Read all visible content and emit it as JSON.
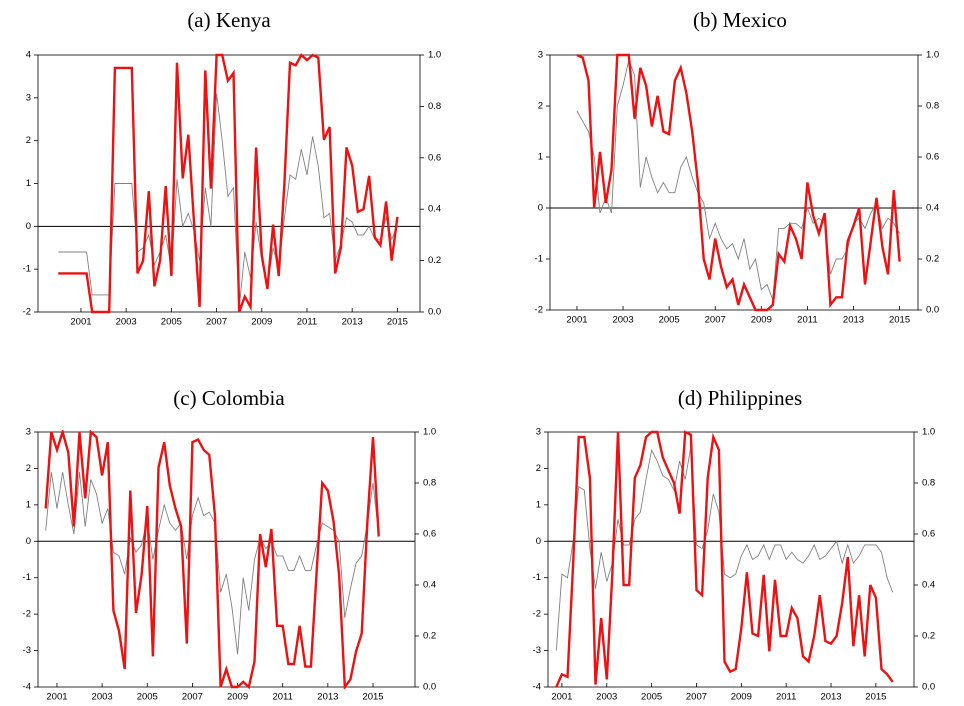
{
  "chart_data": [
    {
      "type": "line",
      "title": "(a) Kenya",
      "x": [
        2000,
        2000.25,
        2000.5,
        2000.75,
        2001,
        2001.25,
        2001.5,
        2001.75,
        2002,
        2002.25,
        2002.5,
        2002.75,
        2003,
        2003.25,
        2003.5,
        2003.75,
        2004,
        2004.25,
        2004.5,
        2004.75,
        2005,
        2005.25,
        2005.5,
        2005.75,
        2006,
        2006.25,
        2006.5,
        2006.75,
        2007,
        2007.25,
        2007.5,
        2007.75,
        2008,
        2008.25,
        2008.5,
        2008.75,
        2009,
        2009.25,
        2009.5,
        2009.75,
        2010,
        2010.25,
        2010.5,
        2010.75,
        2011,
        2011.25,
        2011.5,
        2011.75,
        2012,
        2012.25,
        2012.5,
        2012.75,
        2013,
        2013.25,
        2013.5,
        2013.75,
        2014,
        2014.25,
        2014.5,
        2014.75,
        2015
      ],
      "series": [
        {
          "color": "#808080",
          "values": [
            -0.6,
            -0.6,
            -0.6,
            -0.6,
            -0.6,
            -0.6,
            -1.6,
            -1.6,
            -1.6,
            -1.6,
            1.0,
            1.0,
            1.0,
            1.0,
            -0.6,
            -0.5,
            -0.2,
            -0.9,
            -0.6,
            -0.2,
            -1.0,
            1.1,
            0.0,
            0.3,
            -0.1,
            -0.8,
            0.9,
            0.0,
            3.1,
            2.0,
            0.7,
            0.9,
            -1.9,
            -0.6,
            -1.2,
            0.1,
            -0.8,
            -1.4,
            -0.5,
            -1.0,
            0.2,
            1.2,
            1.1,
            1.8,
            1.2,
            2.1,
            1.4,
            0.2,
            0.3,
            -0.8,
            -0.4,
            0.2,
            0.1,
            -0.2,
            -0.2,
            0.0,
            -0.3,
            -0.3,
            0.2,
            -0.3,
            0.0
          ]
        },
        {
          "color": "#ee1111",
          "axis": "y2",
          "values": [
            0.15,
            0.15,
            0.15,
            0.15,
            0.15,
            0.15,
            0,
            0,
            0,
            0,
            0.95,
            0.95,
            0.95,
            0.95,
            0.15,
            0.2,
            0.47,
            0.1,
            0.2,
            0.49,
            0.14,
            0.97,
            0.52,
            0.69,
            0.35,
            0.02,
            0.94,
            0.48,
            1.0,
            1.0,
            0.9,
            0.93,
            0,
            0.06,
            0.02,
            0.64,
            0.22,
            0.09,
            0.34,
            0.14,
            0.5,
            0.97,
            0.96,
            1.0,
            0.98,
            1.0,
            0.99,
            0.67,
            0.72,
            0.15,
            0.25,
            0.64,
            0.57,
            0.39,
            0.4,
            0.53,
            0.29,
            0.26,
            0.43,
            0.2,
            0.37
          ]
        }
      ],
      "xlim": [
        1999.1,
        2016.0
      ],
      "xticks": [
        2001,
        2003,
        2005,
        2007,
        2009,
        2011,
        2013,
        2015
      ],
      "ylim": [
        -2,
        4
      ],
      "yticks": [
        -2,
        -1,
        0,
        1,
        2,
        3,
        4
      ],
      "y2lim": [
        0,
        1
      ],
      "y2ticks": [
        {
          "value": 0,
          "label": "0.0"
        },
        0.2,
        0.4,
        0.6,
        0.8,
        {
          "value": 1,
          "label": "1.0"
        }
      ],
      "reference_line": 0
    },
    {
      "type": "line",
      "title": "(b) Mexico",
      "x": [
        2001,
        2001.25,
        2001.5,
        2001.75,
        2002,
        2002.25,
        2002.5,
        2002.75,
        2003,
        2003.25,
        2003.5,
        2003.75,
        2004,
        2004.25,
        2004.5,
        2004.75,
        2005,
        2005.25,
        2005.5,
        2005.75,
        2006,
        2006.25,
        2006.5,
        2006.75,
        2007,
        2007.25,
        2007.5,
        2007.75,
        2008,
        2008.25,
        2008.5,
        2008.75,
        2009,
        2009.25,
        2009.5,
        2009.75,
        2010,
        2010.25,
        2010.5,
        2010.75,
        2011,
        2011.25,
        2011.5,
        2011.75,
        2012,
        2012.25,
        2012.5,
        2012.75,
        2013,
        2013.25,
        2013.5,
        2013.75,
        2014,
        2014.25,
        2014.5,
        2014.75,
        2015
      ],
      "series": [
        {
          "color": "#808080",
          "values": [
            1.9,
            1.7,
            1.5,
            1.0,
            -0.1,
            0.2,
            -0.1,
            2.0,
            2.4,
            2.9,
            2.6,
            0.4,
            1.0,
            0.6,
            0.3,
            0.5,
            0.3,
            0.3,
            0.8,
            1.0,
            0.6,
            0.3,
            0.1,
            -0.6,
            -0.3,
            -0.6,
            -0.8,
            -0.7,
            -1.0,
            -0.6,
            -1.2,
            -1.0,
            -1.6,
            -1.5,
            -1.8,
            -0.4,
            -0.4,
            -0.3,
            -0.3,
            -0.4,
            0.0,
            -0.3,
            -0.2,
            -0.3,
            -1.3,
            -1.0,
            -1.0,
            -0.8,
            -0.3,
            -0.2,
            -0.4,
            -0.1,
            0.1,
            -0.4,
            -0.2,
            -0.3,
            -0.5
          ]
        },
        {
          "color": "#ee1111",
          "axis": "y2",
          "values": [
            1.0,
            0.99,
            0.9,
            0.4,
            0.62,
            0.42,
            0.55,
            1.0,
            1.0,
            1.0,
            0.75,
            0.95,
            0.88,
            0.72,
            0.84,
            0.7,
            0.69,
            0.9,
            0.95,
            0.85,
            0.7,
            0.5,
            0.2,
            0.12,
            0.28,
            0.17,
            0.09,
            0.12,
            0.02,
            0.1,
            0.05,
            0,
            0,
            0,
            0.02,
            0.22,
            0.19,
            0.33,
            0.28,
            0.2,
            0.5,
            0.37,
            0.3,
            0.38,
            0.02,
            0.05,
            0.05,
            0.27,
            0.33,
            0.4,
            0.1,
            0.27,
            0.44,
            0.25,
            0.14,
            0.47,
            0.19
          ]
        }
      ],
      "xlim": [
        1999.83,
        2015.8
      ],
      "xticks": [
        2001,
        2003,
        2005,
        2007,
        2009,
        2011,
        2013,
        2015
      ],
      "ylim": [
        -2,
        3
      ],
      "yticks": [
        -2,
        -1,
        0,
        1,
        2,
        3
      ],
      "y2lim": [
        0,
        1
      ],
      "y2ticks": [
        {
          "value": 0,
          "label": "0.0"
        },
        0.2,
        0.4,
        0.6,
        0.8,
        {
          "value": 1,
          "label": "1.0"
        }
      ],
      "reference_line": 0
    },
    {
      "type": "line",
      "title": "(c) Colombia",
      "x": [
        2000.5,
        2000.75,
        2001,
        2001.25,
        2001.5,
        2001.75,
        2002,
        2002.25,
        2002.5,
        2002.75,
        2003,
        2003.25,
        2003.5,
        2003.75,
        2004,
        2004.25,
        2004.5,
        2004.75,
        2005,
        2005.25,
        2005.5,
        2005.75,
        2006,
        2006.25,
        2006.5,
        2006.75,
        2007,
        2007.25,
        2007.5,
        2007.75,
        2008,
        2008.25,
        2008.5,
        2008.75,
        2009,
        2009.25,
        2009.5,
        2009.75,
        2010,
        2010.25,
        2010.5,
        2010.75,
        2011,
        2011.25,
        2011.5,
        2011.75,
        2012,
        2012.25,
        2012.5,
        2012.75,
        2013,
        2013.25,
        2013.5,
        2013.75,
        2014,
        2014.25,
        2014.5,
        2014.75,
        2015,
        2015.25
      ],
      "series": [
        {
          "color": "#808080",
          "values": [
            0.3,
            1.9,
            0.9,
            1.9,
            1.0,
            0.2,
            1.9,
            0.4,
            1.7,
            1.3,
            0.5,
            0.9,
            -0.3,
            -0.4,
            -0.9,
            0.1,
            -0.3,
            -0.1,
            0.6,
            -0.5,
            0.3,
            1.0,
            0.5,
            0.3,
            0.5,
            -0.5,
            0.7,
            1.2,
            0.7,
            0.8,
            0.5,
            -1.4,
            -0.9,
            -1.8,
            -3.1,
            -1.0,
            -1.9,
            -0.5,
            0.1,
            -0.2,
            0.0,
            -0.4,
            -0.4,
            -0.8,
            -0.8,
            -0.4,
            -0.8,
            -0.8,
            -0.1,
            0.5,
            0.4,
            0.3,
            0.0,
            -2.1,
            -1.3,
            -0.6,
            -0.4,
            0.5,
            1.6,
            0.2
          ]
        },
        {
          "color": "#ee1111",
          "axis": "y2",
          "values": [
            0.7,
            1.0,
            0.93,
            1.0,
            0.92,
            0.63,
            1.0,
            0.74,
            1.0,
            0.98,
            0.83,
            0.96,
            0.3,
            0.22,
            0.07,
            0.77,
            0.29,
            0.44,
            0.71,
            0.12,
            0.86,
            0.96,
            0.79,
            0.7,
            0.63,
            0.17,
            0.96,
            0.97,
            0.93,
            0.91,
            0.67,
            0,
            0.07,
            0,
            0,
            0.02,
            0,
            0.1,
            0.6,
            0.47,
            0.62,
            0.24,
            0.24,
            0.09,
            0.09,
            0.24,
            0.08,
            0.08,
            0.45,
            0.8,
            0.77,
            0.65,
            0.44,
            0,
            0.03,
            0.14,
            0.21,
            0.65,
            0.98,
            0.59
          ]
        }
      ],
      "xlim": [
        2000.16,
        2016.86
      ],
      "xticks": [
        2001,
        2003,
        2005,
        2007,
        2009,
        2011,
        2013,
        2015
      ],
      "ylim": [
        -4,
        3
      ],
      "yticks": [
        -4,
        -3,
        -2,
        -1,
        0,
        1,
        2,
        3
      ],
      "y2lim": [
        0,
        1
      ],
      "y2ticks": [
        {
          "value": 0,
          "label": "0.0"
        },
        0.2,
        0.4,
        0.6,
        0.8,
        {
          "value": 1,
          "label": "1.0"
        }
      ],
      "reference_line": 0
    },
    {
      "type": "line",
      "title": "(d) Philippines",
      "x": [
        2000.75,
        2001,
        2001.25,
        2001.5,
        2001.75,
        2002,
        2002.25,
        2002.5,
        2002.75,
        2003,
        2003.25,
        2003.5,
        2003.75,
        2004,
        2004.25,
        2004.5,
        2004.75,
        2005,
        2005.25,
        2005.5,
        2005.75,
        2006,
        2006.25,
        2006.5,
        2006.75,
        2007,
        2007.25,
        2007.5,
        2007.75,
        2008,
        2008.25,
        2008.5,
        2008.75,
        2009,
        2009.25,
        2009.5,
        2009.75,
        2010,
        2010.25,
        2010.5,
        2010.75,
        2011,
        2011.25,
        2011.5,
        2011.75,
        2012,
        2012.25,
        2012.5,
        2012.75,
        2013,
        2013.25,
        2013.5,
        2013.75,
        2014,
        2014.25,
        2014.5,
        2014.75,
        2015,
        2015.25,
        2015.5,
        2015.75
      ],
      "series": [
        {
          "color": "#808080",
          "values": [
            -3.0,
            -0.9,
            -1.0,
            0.0,
            1.5,
            1.4,
            -0.2,
            -1.3,
            -0.3,
            -1.1,
            -0.6,
            0.6,
            -0.1,
            -0.1,
            0.6,
            0.8,
            1.7,
            2.5,
            2.2,
            1.8,
            1.7,
            1.4,
            2.2,
            1.7,
            2.6,
            -0.1,
            -0.2,
            0.3,
            1.3,
            0.8,
            -0.9,
            -1.0,
            -0.9,
            -0.4,
            -0.1,
            -0.5,
            -0.4,
            -0.1,
            -0.5,
            -0.1,
            -0.1,
            -0.5,
            -0.3,
            -0.5,
            -0.6,
            -0.4,
            -0.1,
            -0.5,
            -0.4,
            -0.2,
            0.0,
            -0.6,
            -0.1,
            -0.6,
            -0.4,
            -0.1,
            -0.1,
            -0.1,
            -0.3,
            -1.0,
            -1.4
          ]
        },
        {
          "color": "#ee1111",
          "axis": "y2",
          "values": [
            0,
            0.05,
            0.04,
            0.48,
            0.98,
            0.98,
            0.82,
            0.01,
            0.27,
            0.03,
            0.45,
            1.0,
            0.4,
            0.4,
            0.82,
            0.87,
            0.98,
            1.0,
            1.0,
            0.9,
            0.85,
            0.8,
            0.68,
            1.0,
            0.99,
            0.38,
            0.36,
            0.82,
            0.98,
            0.93,
            0.1,
            0.06,
            0.07,
            0.23,
            0.45,
            0.21,
            0.2,
            0.44,
            0.14,
            0.42,
            0.2,
            0.2,
            0.31,
            0.27,
            0.12,
            0.1,
            0.2,
            0.36,
            0.18,
            0.17,
            0.2,
            0.33,
            0.51,
            0.16,
            0.36,
            0.12,
            0.4,
            0.35,
            0.07,
            0.05,
            0.02
          ]
        }
      ],
      "xlim": [
        2000.38,
        2016.7
      ],
      "xticks": [
        2001,
        2003,
        2005,
        2007,
        2009,
        2011,
        2013,
        2015
      ],
      "ylim": [
        -4,
        3
      ],
      "yticks": [
        -4,
        -3,
        -2,
        -1,
        0,
        1,
        2,
        3
      ],
      "y2lim": [
        0,
        1
      ],
      "y2ticks": [
        {
          "value": 0,
          "label": "0.0"
        },
        0.2,
        0.4,
        0.6,
        0.8,
        {
          "value": 1,
          "label": "1.0"
        }
      ],
      "reference_line": 0
    }
  ]
}
